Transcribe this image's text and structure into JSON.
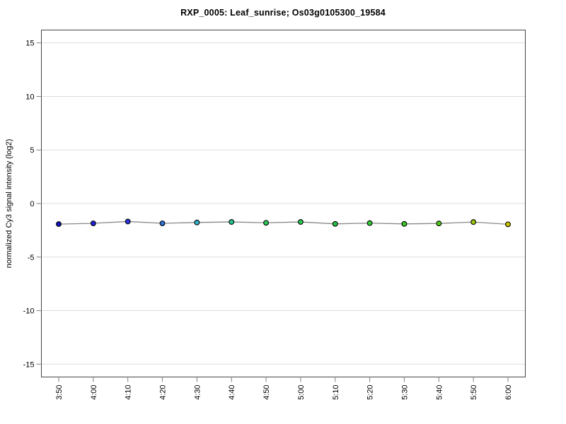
{
  "page": {
    "background": "#ffffff"
  },
  "chart_data": {
    "type": "line",
    "title": "RXP_0005: Leaf_sunrise; Os03g0105300_19584",
    "xlabel": "",
    "ylabel": "normalized Cy3 signal intensity (log2)",
    "categories": [
      "3:50",
      "4:00",
      "4:10",
      "4:20",
      "4:30",
      "4:40",
      "4:50",
      "5:00",
      "5:10",
      "5:20",
      "5:30",
      "5:40",
      "5:50",
      "6:00"
    ],
    "values": [
      -1.92,
      -1.85,
      -1.68,
      -1.85,
      -1.77,
      -1.72,
      -1.8,
      -1.72,
      -1.9,
      -1.83,
      -1.9,
      -1.86,
      -1.73,
      -1.94
    ],
    "point_colors": [
      "#1414B8",
      "#2121DC",
      "#2B36E0",
      "#2A74D6",
      "#33B3CC",
      "#21C795",
      "#2ACC5C",
      "#2BCB52",
      "#27C447",
      "#31CC33",
      "#3CCB27",
      "#50CB1A",
      "#9DC70E",
      "#C9C400"
    ],
    "yticks": [
      -15,
      -10,
      -5,
      0,
      5,
      10,
      15
    ],
    "ylim": [
      -16.2,
      16.2
    ],
    "grid": true,
    "legend": "none",
    "line_color": "#888888",
    "marker_outline": "#000000",
    "marker_radius": 3.4,
    "gridline_color": "#dddddd",
    "box_color": "#444444",
    "tick_color": "#808080",
    "text_color": "#000000"
  }
}
